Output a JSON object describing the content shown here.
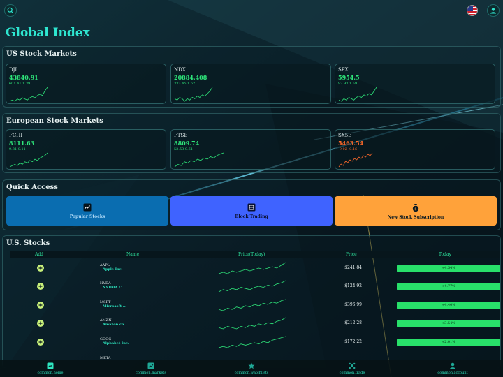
{
  "header": {
    "search_icon": "search-icon",
    "flag_icon": "us-flag-icon",
    "account_icon": "user-icon"
  },
  "page": {
    "title": "Global Index"
  },
  "us_markets": {
    "title": "US Stock Markets",
    "cards": [
      {
        "symbol": "DJI",
        "value": "43840.91",
        "change": "601.41 1.39",
        "direction": "up",
        "trend": [
          3,
          4,
          3,
          5,
          4,
          6,
          5,
          4,
          6,
          7,
          6,
          8,
          9,
          8,
          12,
          15
        ]
      },
      {
        "symbol": "NDX",
        "value": "20884.408",
        "change": "333.45 1.62",
        "direction": "up",
        "trend": [
          5,
          4,
          6,
          5,
          3,
          5,
          4,
          6,
          5,
          7,
          6,
          8,
          7,
          9,
          11,
          14
        ]
      },
      {
        "symbol": "SPX",
        "value": "5954.5",
        "change": "92.93 1.59",
        "direction": "up",
        "trend": [
          4,
          3,
          5,
          4,
          6,
          5,
          4,
          6,
          7,
          6,
          8,
          7,
          9,
          8,
          11,
          14
        ]
      }
    ]
  },
  "eu_markets": {
    "title": "European Stock Markets",
    "cards": [
      {
        "symbol": "FCHI",
        "value": "8111.63",
        "change": "9.31 0.11",
        "direction": "up",
        "trend": [
          3,
          4,
          5,
          4,
          6,
          5,
          7,
          6,
          8,
          7,
          9,
          8,
          10,
          11,
          12,
          14
        ]
      },
      {
        "symbol": "FTSE",
        "value": "8809.74",
        "change": "53.53 0.61",
        "direction": "up",
        "trend": [
          2,
          4,
          3,
          6,
          5,
          7,
          6,
          8,
          7,
          9,
          8,
          10,
          9,
          11,
          12,
          13
        ]
      },
      {
        "symbol": "SX5E",
        "value": "5463.54",
        "change": "-9.02 -0.16",
        "direction": "down",
        "trend": [
          3,
          5,
          4,
          7,
          6,
          8,
          7,
          9,
          8,
          10,
          9,
          11,
          10,
          12,
          11,
          13
        ]
      }
    ]
  },
  "quick_access": {
    "title": "Quick Access",
    "items": [
      {
        "label": "Popular Stocks",
        "icon": "trending-chart-icon"
      },
      {
        "label": "Block Trading",
        "icon": "block-trading-icon"
      },
      {
        "label": "New Stock Subscription",
        "icon": "money-bag-icon"
      }
    ]
  },
  "us_stocks": {
    "title": "U.S. Stocks",
    "columns": {
      "add": "Add",
      "name": "Name",
      "price_today": "Price(Today)",
      "price": "Price",
      "today": "Today"
    },
    "rows": [
      {
        "ticker": "AAPL",
        "name": "Apple Inc.",
        "price": "$241.84",
        "today": "+4.54%",
        "trend": [
          4,
          5,
          4,
          6,
          5,
          6,
          7,
          6,
          7,
          8,
          7,
          8,
          9,
          8,
          10,
          12
        ]
      },
      {
        "ticker": "NVDA",
        "name": "NVIDIA C...",
        "price": "$124.92",
        "today": "+4.77%",
        "trend": [
          3,
          5,
          4,
          6,
          5,
          7,
          6,
          5,
          7,
          8,
          7,
          9,
          8,
          10,
          11,
          13
        ]
      },
      {
        "ticker": "MSFT",
        "name": "Microsoft ...",
        "price": "$396.99",
        "today": "+4.40%",
        "trend": [
          4,
          3,
          5,
          4,
          6,
          5,
          7,
          6,
          8,
          7,
          9,
          8,
          10,
          9,
          11,
          12
        ]
      },
      {
        "ticker": "AMZN",
        "name": "Amazon.co...",
        "price": "$212.28",
        "today": "+3.54%",
        "trend": [
          5,
          4,
          6,
          5,
          4,
          6,
          5,
          7,
          6,
          8,
          7,
          9,
          8,
          10,
          11,
          13
        ]
      },
      {
        "ticker": "GOOG",
        "name": "Alphabet Inc.",
        "price": "$172.22",
        "today": "+2.01%",
        "trend": [
          3,
          4,
          3,
          5,
          4,
          6,
          5,
          6,
          7,
          6,
          8,
          7,
          9,
          10,
          11,
          12
        ]
      },
      {
        "ticker": "META",
        "name": "",
        "price": "",
        "today": "",
        "trend": []
      }
    ]
  },
  "bottom_nav": {
    "items": [
      {
        "label": "common.home",
        "icon": "home-icon"
      },
      {
        "label": "common.markets",
        "icon": "markets-icon"
      },
      {
        "label": "common.watchlists",
        "icon": "watchlist-icon"
      },
      {
        "label": "common.trade",
        "icon": "trade-icon"
      },
      {
        "label": "common.account",
        "icon": "account-icon"
      }
    ]
  },
  "colors": {
    "accent": "#2ee6d0",
    "positive": "#2ee57a",
    "negative": "#ff6a2a"
  }
}
